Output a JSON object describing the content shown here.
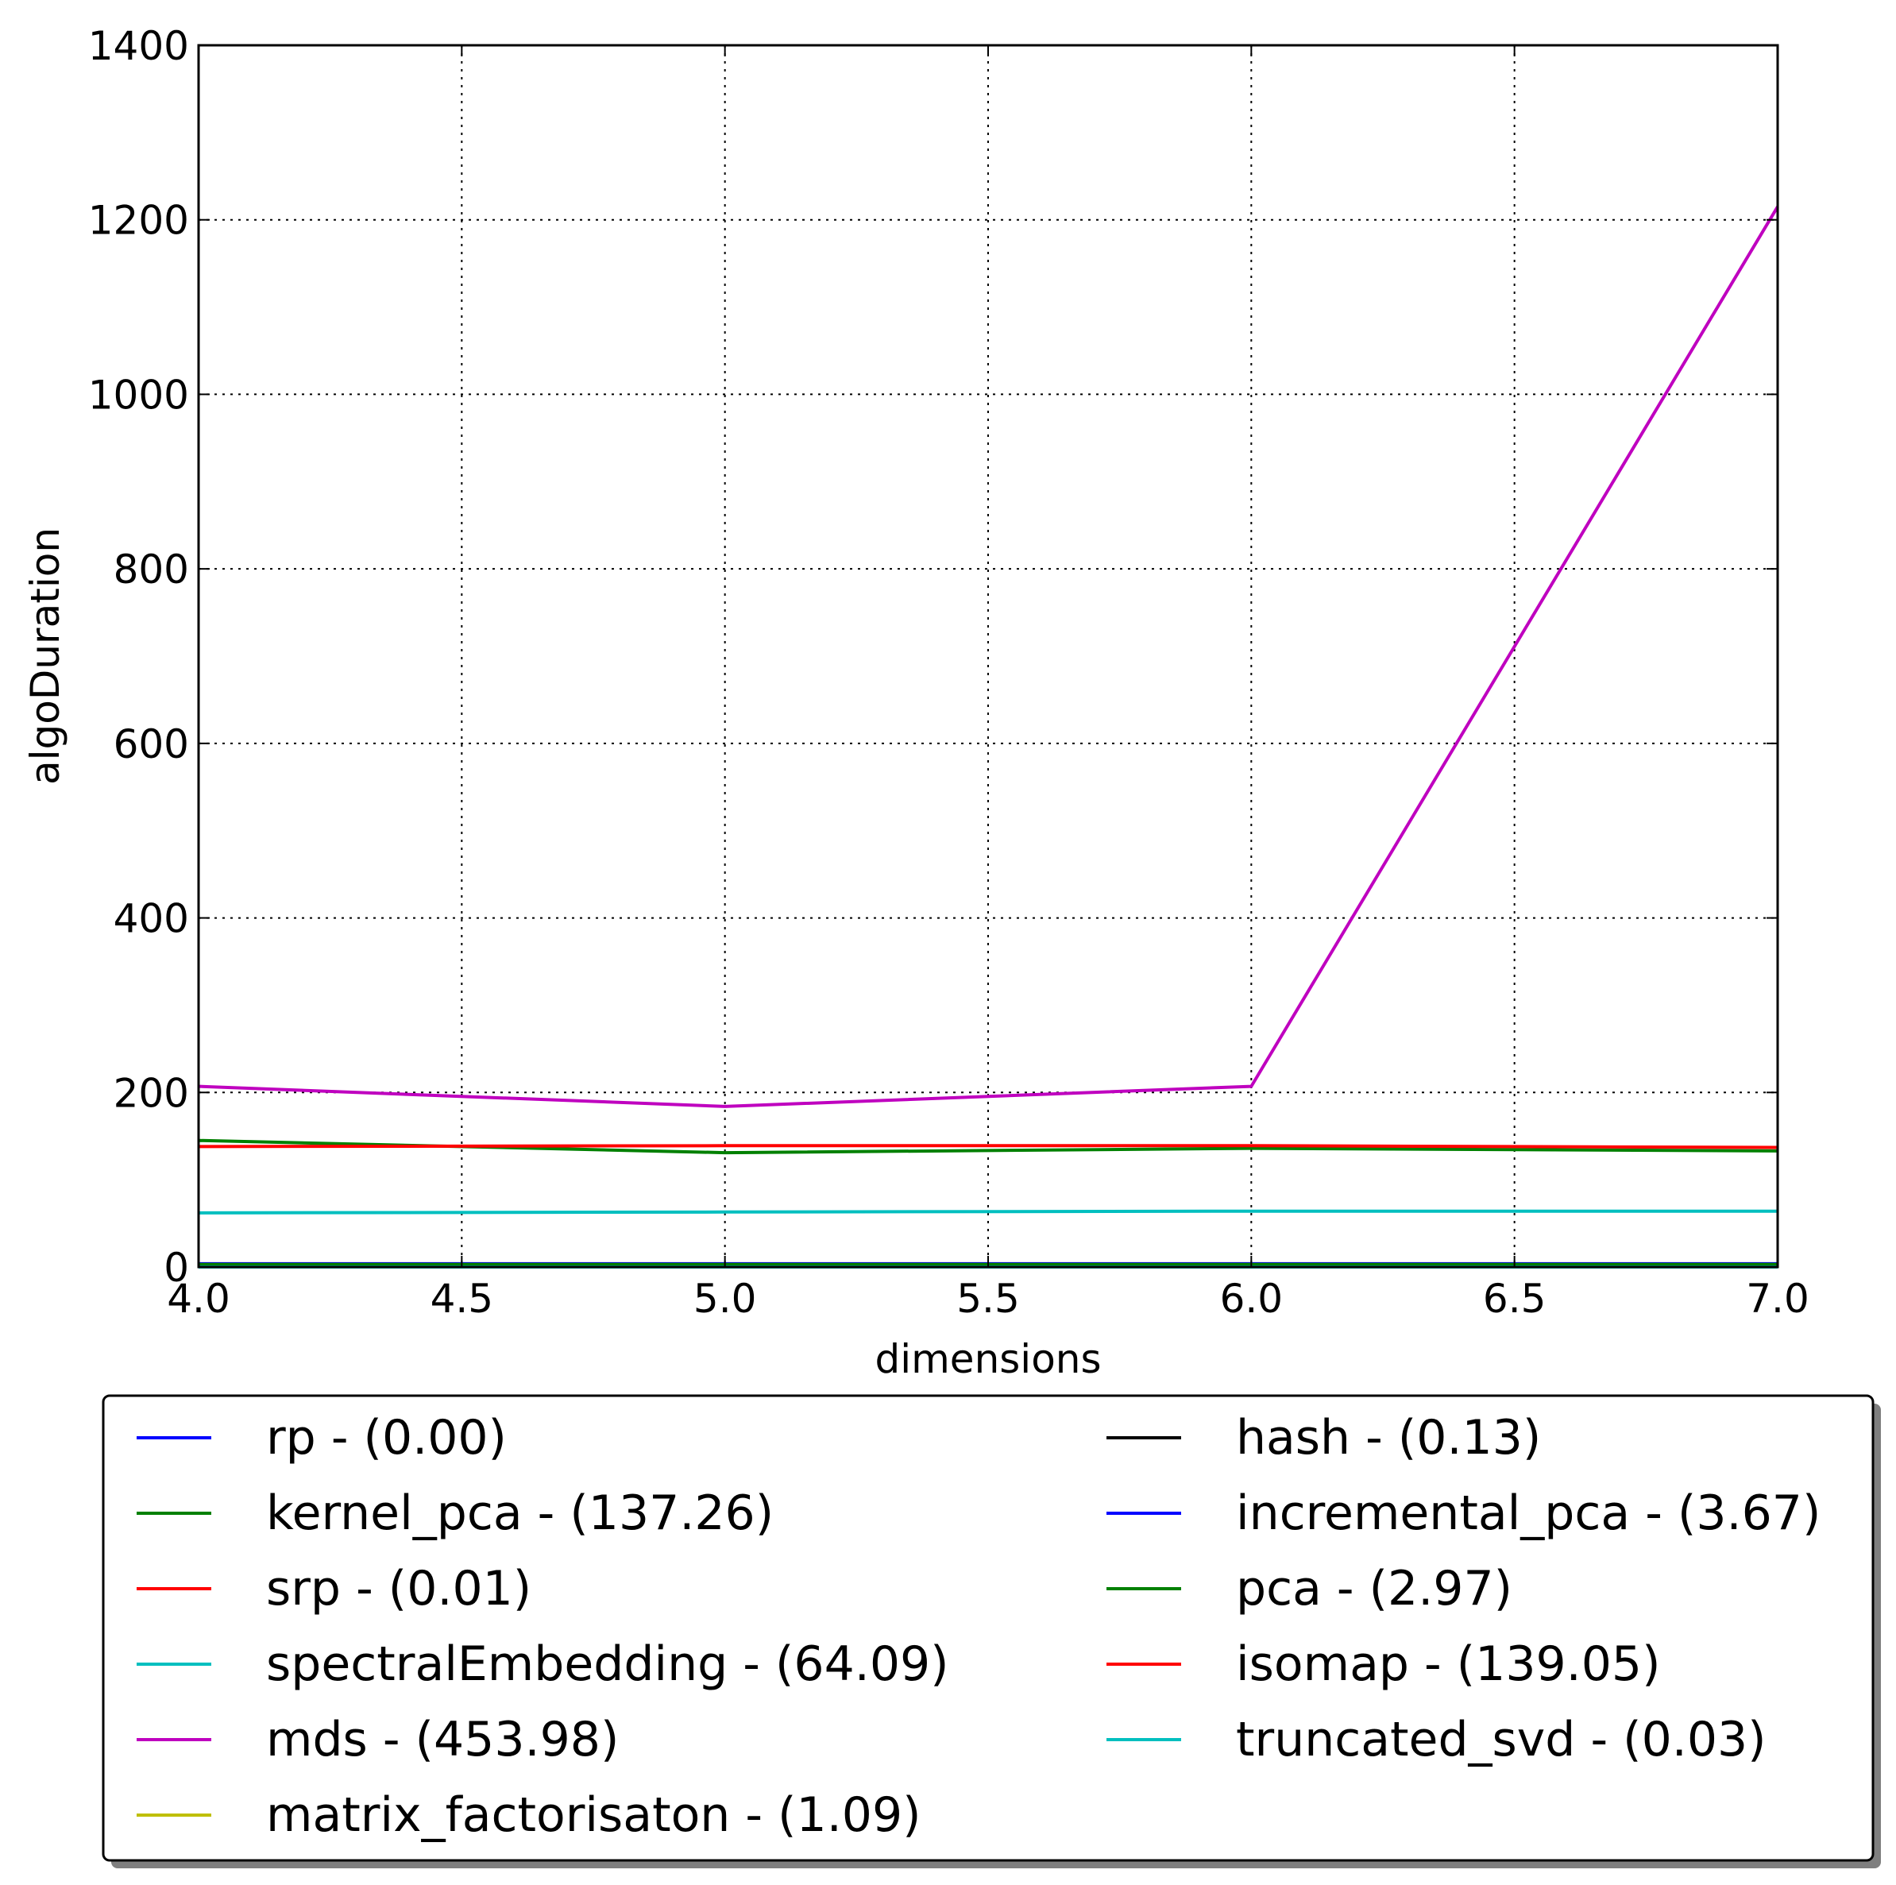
{
  "chart_data": {
    "type": "line",
    "title": "",
    "xlabel": "dimensions",
    "ylabel": "algoDuration",
    "xlim": [
      4.0,
      7.0
    ],
    "ylim": [
      0,
      1400
    ],
    "xticks": [
      "4.0",
      "4.5",
      "5.0",
      "5.5",
      "6.0",
      "6.5",
      "7.0"
    ],
    "yticks": [
      "0",
      "200",
      "400",
      "600",
      "800",
      "1000",
      "1200",
      "1400"
    ],
    "grid": true,
    "legend_position": "below",
    "x": [
      4,
      5,
      6,
      7
    ],
    "series": [
      {
        "name": "rp - (0.00)",
        "color": "#0000ff",
        "values": [
          0.0,
          0.0,
          0.0,
          0.0
        ]
      },
      {
        "name": "kernel_pca - (137.26)",
        "color": "#008000",
        "values": [
          145,
          131,
          136,
          133
        ]
      },
      {
        "name": "srp - (0.01)",
        "color": "#ff0000",
        "values": [
          0.01,
          0.01,
          0.01,
          0.01
        ]
      },
      {
        "name": "spectralEmbedding - (64.09)",
        "color": "#00bfbf",
        "values": [
          62,
          63,
          64,
          64
        ]
      },
      {
        "name": "mds - (453.98)",
        "color": "#bf00bf",
        "values": [
          207,
          184,
          207,
          1215
        ]
      },
      {
        "name": "matrix_factorisaton - (1.09)",
        "color": "#bfbf00",
        "values": [
          1.1,
          1.1,
          1.1,
          1.1
        ]
      },
      {
        "name": "hash - (0.13)",
        "color": "#000000",
        "values": [
          0.13,
          0.13,
          0.13,
          0.13
        ]
      },
      {
        "name": "incremental_pca - (3.67)",
        "color": "#0000ff",
        "values": [
          3.7,
          3.7,
          3.7,
          3.7
        ]
      },
      {
        "name": "pca - (2.97)",
        "color": "#008000",
        "values": [
          3.0,
          3.0,
          3.0,
          3.0
        ]
      },
      {
        "name": "isomap - (139.05)",
        "color": "#ff0000",
        "values": [
          138,
          139,
          139,
          137
        ]
      },
      {
        "name": "truncated_svd - (0.03)",
        "color": "#00bfbf",
        "values": [
          0.03,
          0.03,
          0.03,
          0.03
        ]
      }
    ]
  }
}
